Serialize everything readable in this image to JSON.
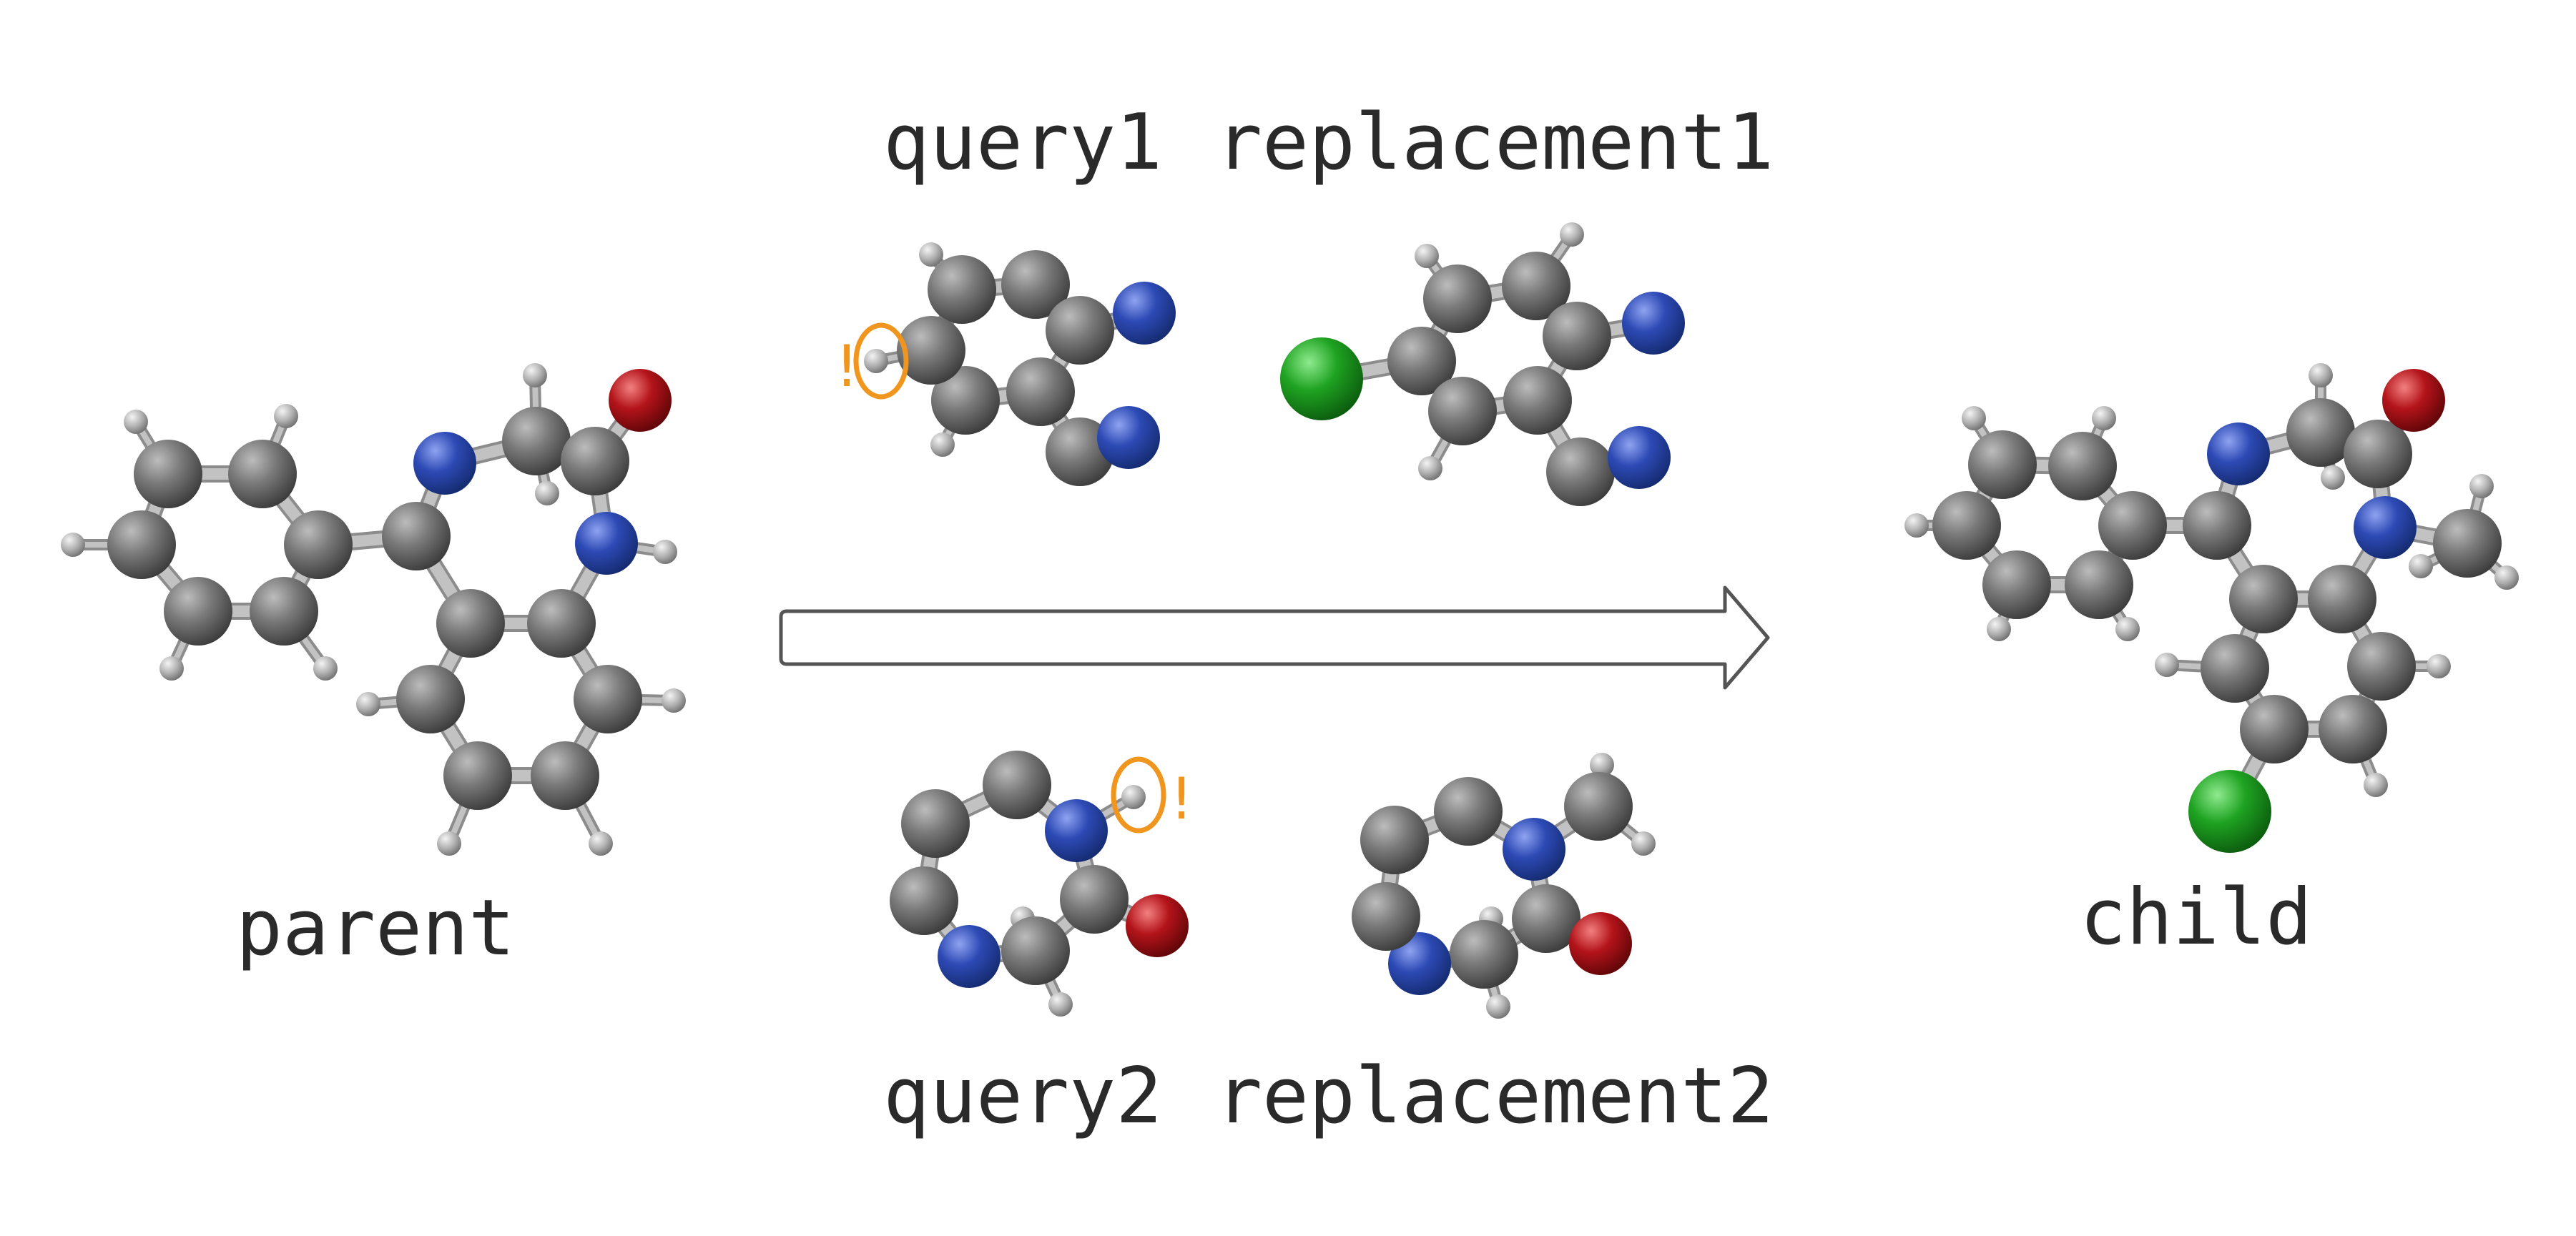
{
  "labels": {
    "parent": "parent",
    "child": "child",
    "query1": "query1",
    "replacement1": "replacement1",
    "query2": "query2",
    "replacement2": "replacement2",
    "mark": "!"
  },
  "colors": {
    "carbon": "#6b6b6b",
    "nitrogen": "#2d4ab5",
    "oxygen": "#b3141a",
    "chlorine": "#1fa322",
    "hydrogen": "#a9a9a9",
    "bond": "#c2c2c2",
    "highlight": "#f0961e",
    "arrow": "#555555"
  }
}
